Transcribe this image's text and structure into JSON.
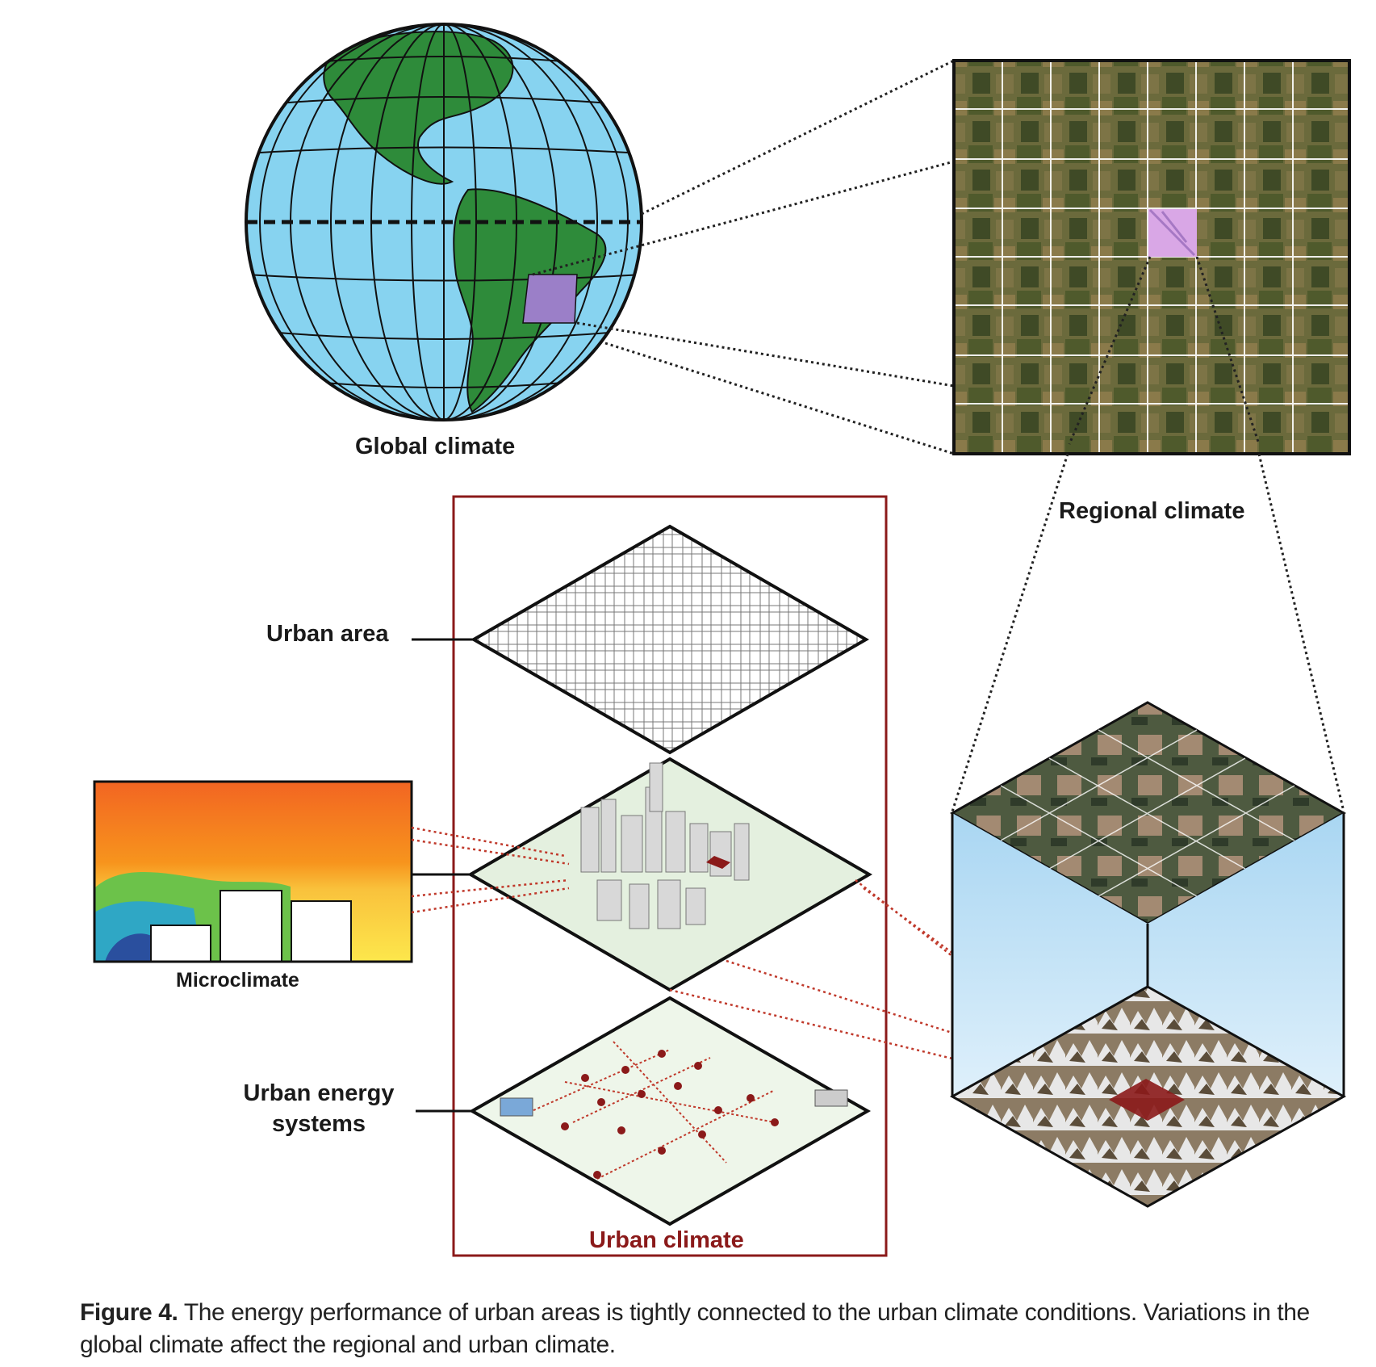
{
  "labels": {
    "global": "Global climate",
    "regional": "Regional climate",
    "urban_area": "Urban area",
    "microclimate": "Microclimate",
    "urban_energy": "Urban energy systems",
    "urban_climate": "Urban climate"
  },
  "caption": {
    "figure_number": "Figure 4.",
    "text": " The energy performance of urban areas is tightly connected to the urban climate conditions. Variations in the global climate affect the regional and urban climate."
  },
  "colors": {
    "ocean": "#87d3f0",
    "land": "#2e8b3a",
    "highlight_region": "#9b7fc8",
    "urban_frame": "#8b1a1a",
    "connector_red": "#c0392b",
    "farmland": "#5f6b3a"
  }
}
